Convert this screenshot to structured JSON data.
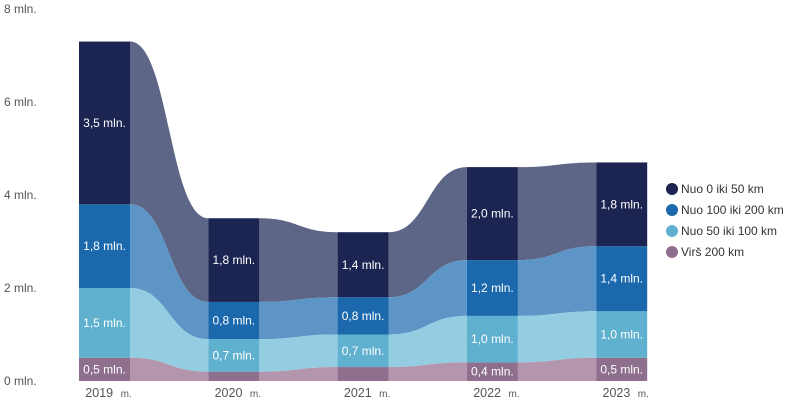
{
  "chart_data": {
    "type": "bar",
    "stacked": true,
    "title": "",
    "xlabel": "",
    "ylabel": "",
    "ylim": [
      0,
      8
    ],
    "yticks": [
      0,
      2,
      4,
      6,
      8
    ],
    "ytick_labels": [
      "0 mln.",
      "2 mln.",
      "4 mln.",
      "6 mln.",
      "8 mln."
    ],
    "categories": [
      "2019",
      "2020",
      "2021",
      "2022",
      "2023"
    ],
    "category_suffix": "m.",
    "legend_position": "right",
    "series": [
      {
        "name": "Virš 200 km",
        "color": "#8f6f8e",
        "ribbon": "#b396ad",
        "values": [
          0.5,
          0.2,
          0.3,
          0.4,
          0.5
        ],
        "labels": [
          "0,5 mln.",
          null,
          null,
          "0,4 mln.",
          "0,5 mln."
        ]
      },
      {
        "name": "Nuo 50 iki 100 km",
        "color": "#5fb1cf",
        "ribbon": "#94cde1",
        "values": [
          1.5,
          0.7,
          0.7,
          1.0,
          1.0
        ],
        "labels": [
          "1,5 mln.",
          "0,7 mln.",
          "0,7 mln.",
          "1,0 mln.",
          "1,0 mln."
        ]
      },
      {
        "name": "Nuo 100 iki 200 km",
        "color": "#1b68ac",
        "ribbon": "#5c95c6",
        "values": [
          1.8,
          0.8,
          0.8,
          1.2,
          1.4
        ],
        "labels": [
          "1,8 mln.",
          "0,8 mln.",
          "0,8 mln.",
          "1,2 mln.",
          "1,4 mln."
        ]
      },
      {
        "name": "Nuo 0 iki 50 km",
        "color": "#1c2552",
        "ribbon": "#5d6686",
        "values": [
          3.5,
          1.8,
          1.4,
          2.0,
          1.8
        ],
        "labels": [
          "3,5 mln.",
          "1,8 mln.",
          "1,4 mln.",
          "2,0 mln.",
          "1,8 mln."
        ]
      }
    ]
  },
  "legend_order": [
    3,
    2,
    1,
    0
  ]
}
